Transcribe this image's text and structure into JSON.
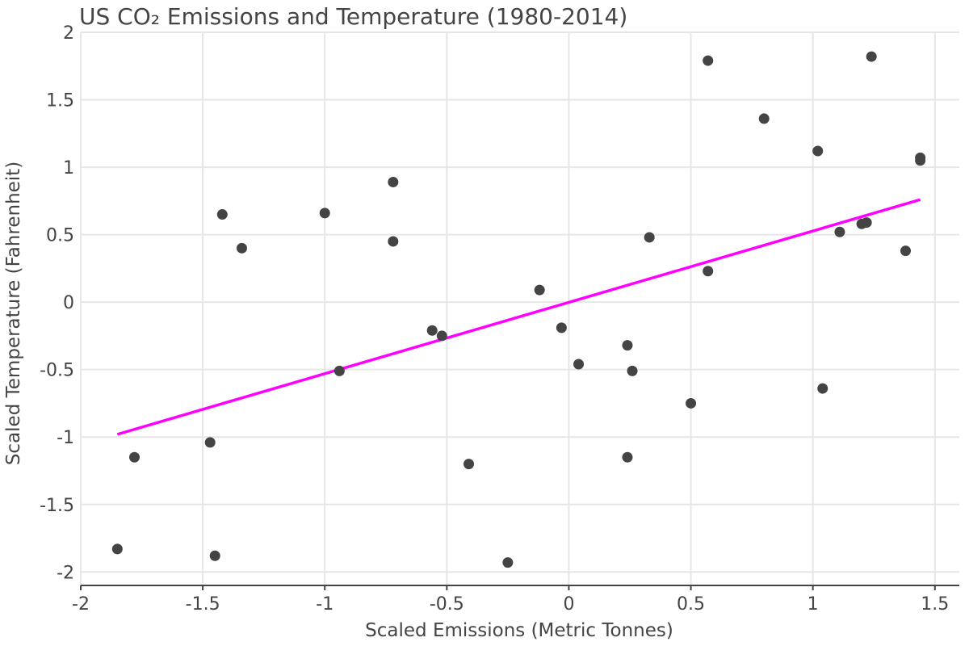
{
  "chart_data": {
    "type": "scatter",
    "title": "US CO₂ Emissions and Temperature (1980-2014)",
    "xlabel": "Scaled Emissions (Metric Tonnes)",
    "ylabel": "Scaled Temperature (Fahrenheit)",
    "xlim": [
      -2,
      1.6
    ],
    "ylim": [
      -2.1,
      2
    ],
    "xticks": [
      -2,
      -1.5,
      -1,
      -0.5,
      0,
      0.5,
      1,
      1.5
    ],
    "xtick_labels": [
      "-2",
      "-1.5",
      "-1",
      "-0.5",
      "0",
      "0.5",
      "1",
      "1.5"
    ],
    "yticks": [
      -2,
      -1.5,
      -1,
      -0.5,
      0,
      0.5,
      1,
      1.5,
      2
    ],
    "ytick_labels": [
      "-2",
      "-1.5",
      "-1",
      "-0.5",
      "0",
      "0.5",
      "1",
      "1.5",
      "2"
    ],
    "grid": true,
    "points": [
      {
        "x": -1.85,
        "y": -1.83
      },
      {
        "x": -1.78,
        "y": -1.15
      },
      {
        "x": -1.47,
        "y": -1.04
      },
      {
        "x": -1.45,
        "y": -1.88
      },
      {
        "x": -1.42,
        "y": 0.65
      },
      {
        "x": -1.34,
        "y": 0.4
      },
      {
        "x": -1.0,
        "y": 0.66
      },
      {
        "x": -0.94,
        "y": -0.51
      },
      {
        "x": -0.72,
        "y": 0.89
      },
      {
        "x": -0.72,
        "y": 0.45
      },
      {
        "x": -0.56,
        "y": -0.21
      },
      {
        "x": -0.52,
        "y": -0.25
      },
      {
        "x": -0.41,
        "y": -1.2
      },
      {
        "x": -0.25,
        "y": -1.93
      },
      {
        "x": -0.12,
        "y": 0.09
      },
      {
        "x": -0.03,
        "y": -0.19
      },
      {
        "x": 0.04,
        "y": -0.46
      },
      {
        "x": 0.24,
        "y": -0.32
      },
      {
        "x": 0.24,
        "y": -1.15
      },
      {
        "x": 0.26,
        "y": -0.51
      },
      {
        "x": 0.33,
        "y": 0.48
      },
      {
        "x": 0.5,
        "y": -0.75
      },
      {
        "x": 0.57,
        "y": 1.79
      },
      {
        "x": 0.57,
        "y": 0.23
      },
      {
        "x": 0.8,
        "y": 1.36
      },
      {
        "x": 1.02,
        "y": 1.12
      },
      {
        "x": 1.04,
        "y": -0.64
      },
      {
        "x": 1.11,
        "y": 0.52
      },
      {
        "x": 1.2,
        "y": 0.58
      },
      {
        "x": 1.22,
        "y": 0.59
      },
      {
        "x": 1.24,
        "y": 1.82
      },
      {
        "x": 1.38,
        "y": 0.38
      },
      {
        "x": 1.44,
        "y": 1.07
      },
      {
        "x": 1.44,
        "y": 1.05
      }
    ],
    "trendline": {
      "x": [
        -1.85,
        1.44
      ],
      "y": [
        -0.98,
        0.76
      ]
    },
    "colors": {
      "points": "#444444",
      "trendline": "#ff00ff",
      "grid": "#e6e6e6",
      "axis": "#444444"
    }
  }
}
